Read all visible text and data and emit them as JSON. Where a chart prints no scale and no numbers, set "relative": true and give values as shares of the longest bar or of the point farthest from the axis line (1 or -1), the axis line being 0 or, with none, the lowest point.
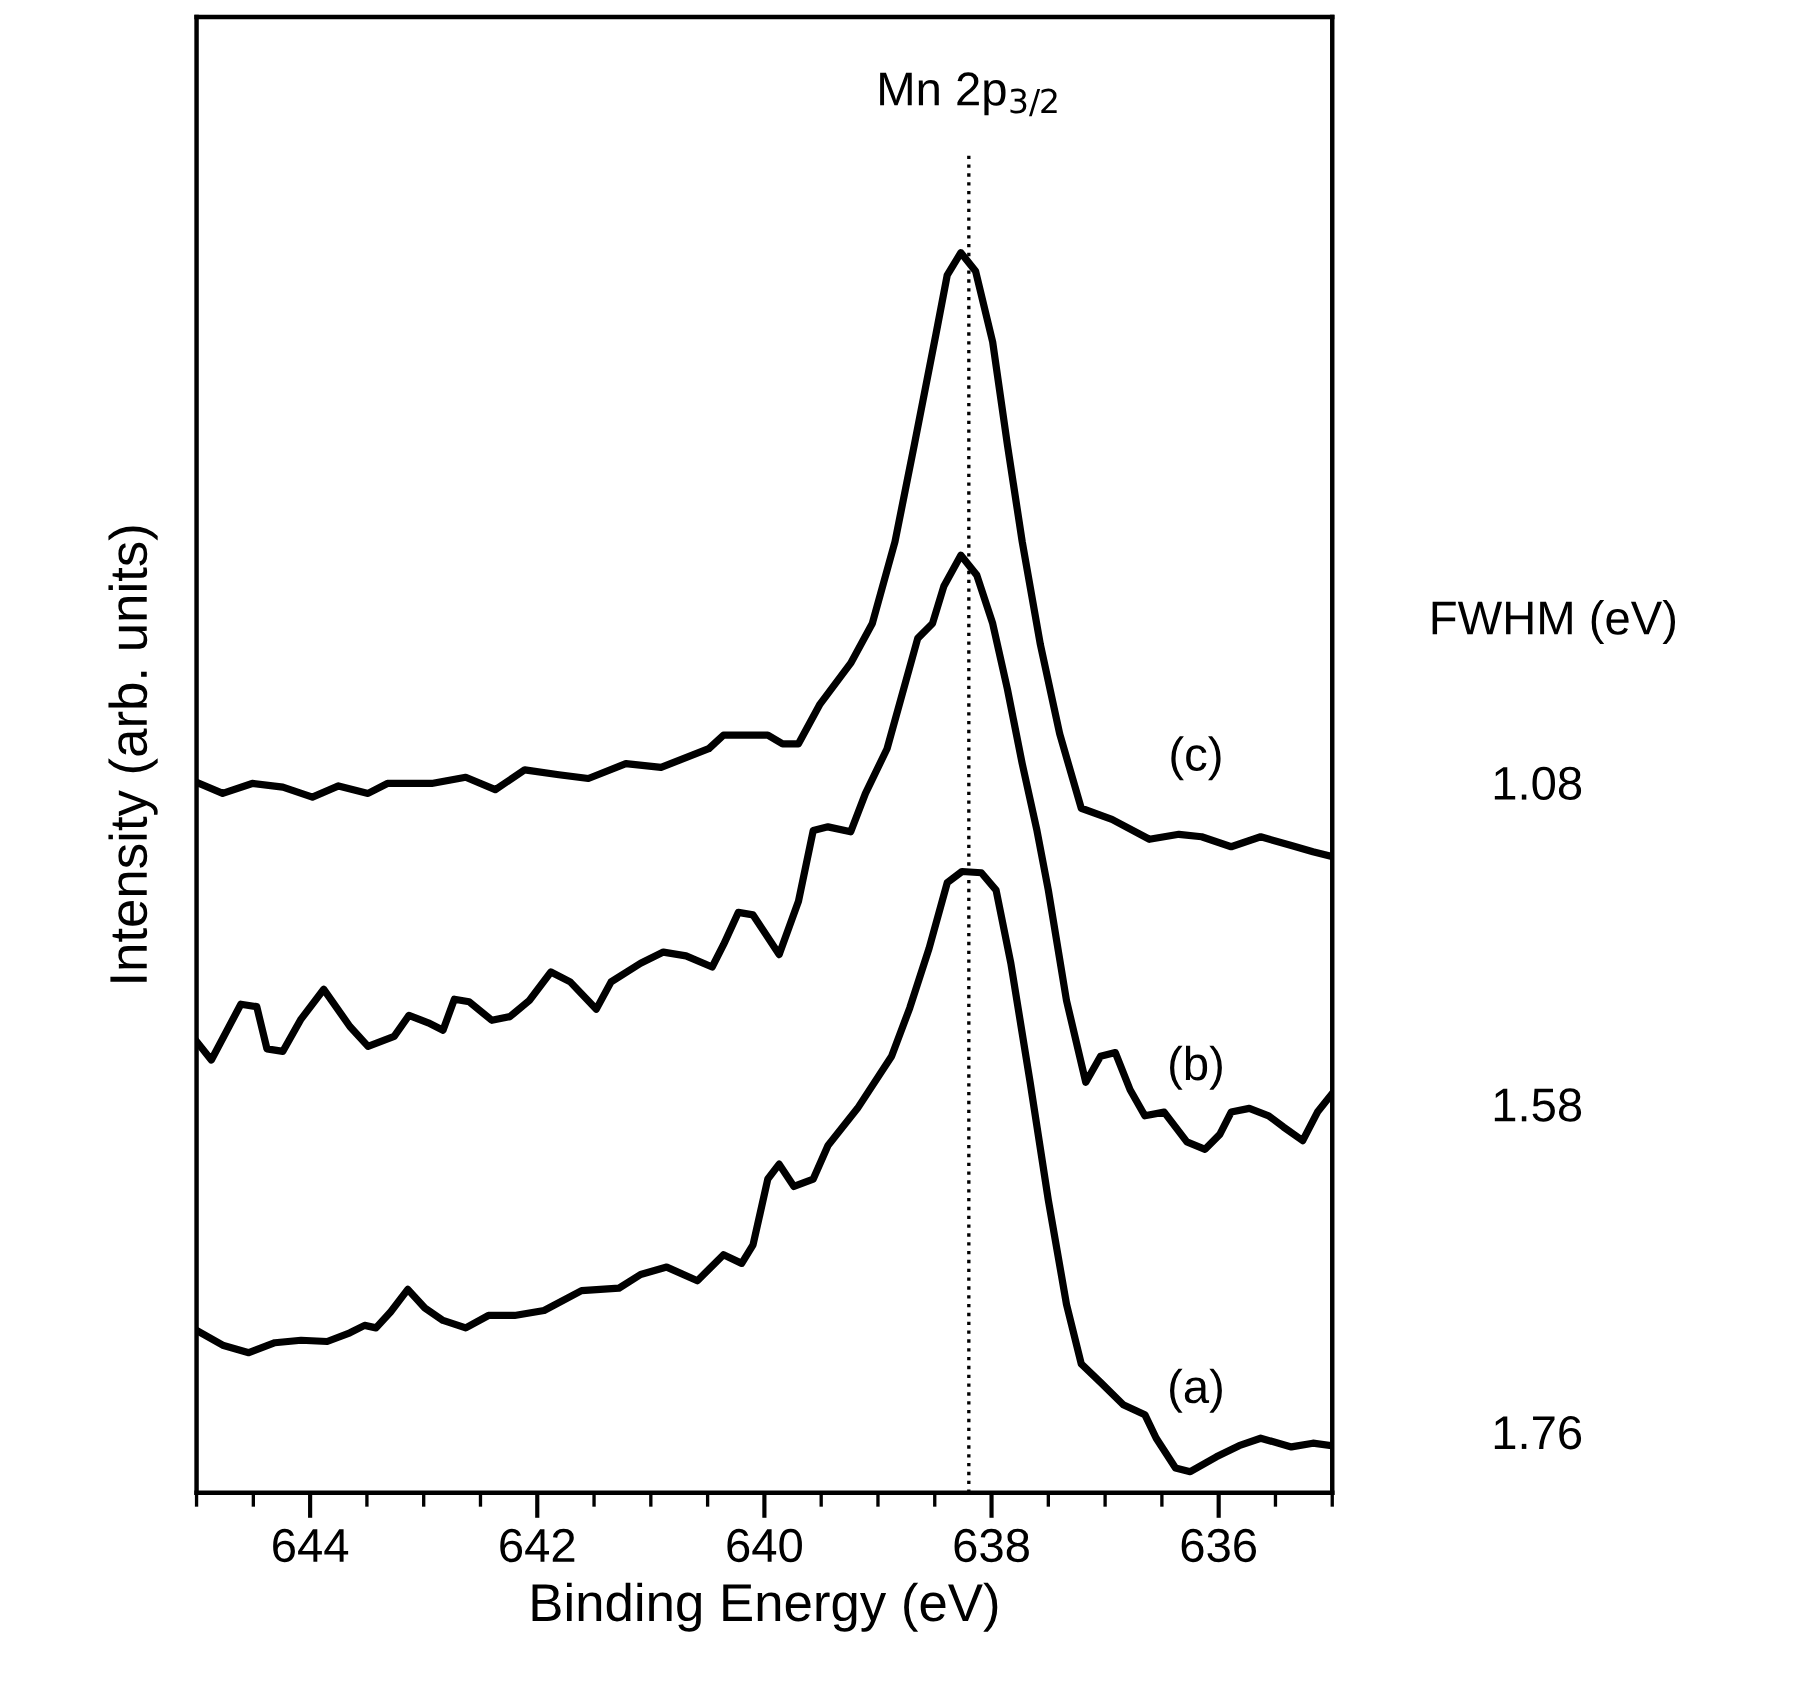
{
  "chart_data": {
    "type": "line",
    "relative": true,
    "xlabel": "Binding Energy (eV)",
    "ylabel": "Intensity (arb. units)",
    "xlim": [
      645,
      635
    ],
    "xticks": [
      {
        "value": 645,
        "label": null
      },
      {
        "value": 644.5,
        "label": null
      },
      644,
      {
        "value": 643.5,
        "label": null
      },
      {
        "value": 643,
        "label": null
      },
      {
        "value": 642.5,
        "label": null
      },
      642,
      {
        "value": 641.5,
        "label": null
      },
      {
        "value": 641,
        "label": null
      },
      {
        "value": 640.5,
        "label": null
      },
      640,
      {
        "value": 639.5,
        "label": null
      },
      {
        "value": 639,
        "label": null
      },
      {
        "value": 638.5,
        "label": null
      },
      638,
      {
        "value": 637.5,
        "label": null
      },
      {
        "value": 637,
        "label": null
      },
      {
        "value": 636.5,
        "label": null
      },
      636,
      {
        "value": 635.5,
        "label": null
      },
      {
        "value": 635,
        "label": null
      }
    ],
    "grid": false,
    "legend": false,
    "marker": "none",
    "line_style": "solid",
    "ref_lines": [
      {
        "axis": "x",
        "value": 638.2,
        "label": "Mn 2p$_{3/2}$",
        "line_style": "dotted",
        "color": "#000000"
      }
    ],
    "annotations": [
      "FWHM (eV)",
      "1.08",
      "1.58",
      "1.76"
    ],
    "series": [
      {
        "name": "(c)",
        "color": "#000000",
        "x": [
          645.0,
          644.77,
          644.51,
          644.24,
          643.98,
          643.75,
          643.49,
          643.32,
          642.93,
          642.63,
          642.37,
          642.11,
          641.81,
          641.55,
          641.22,
          640.91,
          640.49,
          640.36,
          639.97,
          639.84,
          639.7,
          639.51,
          639.24,
          639.05,
          638.85,
          638.68,
          638.49,
          638.39,
          638.27,
          638.14,
          637.99,
          637.86,
          637.73,
          637.57,
          637.4,
          637.21,
          636.94,
          636.61,
          636.35,
          636.15,
          635.89,
          635.63,
          635.36,
          635.17,
          635.0
        ],
        "values": [
          0.573,
          0.564,
          0.572,
          0.569,
          0.561,
          0.57,
          0.564,
          0.572,
          0.572,
          0.577,
          0.567,
          0.583,
          0.579,
          0.576,
          0.588,
          0.585,
          0.6,
          0.611,
          0.611,
          0.604,
          0.604,
          0.636,
          0.669,
          0.701,
          0.767,
          0.845,
          0.934,
          0.982,
          1.0,
          0.985,
          0.928,
          0.845,
          0.767,
          0.684,
          0.612,
          0.552,
          0.543,
          0.527,
          0.531,
          0.529,
          0.521,
          0.529,
          0.522,
          0.517,
          0.513
        ]
      },
      {
        "name": "(b)",
        "color": "#000000",
        "x": [
          645.0,
          644.87,
          644.61,
          644.47,
          644.38,
          644.24,
          644.08,
          643.88,
          643.65,
          643.49,
          643.26,
          643.13,
          642.96,
          642.83,
          642.73,
          642.6,
          642.4,
          642.24,
          642.07,
          641.88,
          641.71,
          641.48,
          641.35,
          641.09,
          640.89,
          640.69,
          640.46,
          640.36,
          640.23,
          640.1,
          639.87,
          639.7,
          639.57,
          639.44,
          639.24,
          639.11,
          638.92,
          638.65,
          638.52,
          638.42,
          638.27,
          638.13,
          637.99,
          637.86,
          637.73,
          637.6,
          637.5,
          637.34,
          637.17,
          637.04,
          636.91,
          636.78,
          636.65,
          636.48,
          636.28,
          636.12,
          635.99,
          635.89,
          635.73,
          635.56,
          635.43,
          635.26,
          635.13,
          635.0
        ],
        "values": [
          0.364,
          0.349,
          0.394,
          0.392,
          0.358,
          0.356,
          0.382,
          0.406,
          0.376,
          0.36,
          0.368,
          0.385,
          0.379,
          0.373,
          0.398,
          0.396,
          0.381,
          0.384,
          0.397,
          0.42,
          0.412,
          0.39,
          0.412,
          0.427,
          0.436,
          0.433,
          0.424,
          0.442,
          0.468,
          0.466,
          0.434,
          0.477,
          0.534,
          0.537,
          0.533,
          0.564,
          0.6,
          0.689,
          0.701,
          0.731,
          0.756,
          0.74,
          0.701,
          0.648,
          0.588,
          0.534,
          0.486,
          0.397,
          0.331,
          0.352,
          0.355,
          0.325,
          0.304,
          0.307,
          0.283,
          0.277,
          0.289,
          0.307,
          0.31,
          0.304,
          0.295,
          0.284,
          0.307,
          0.322
        ]
      },
      {
        "name": "(a)",
        "color": "#000000",
        "x": [
          645.0,
          644.77,
          644.54,
          644.31,
          644.08,
          643.85,
          643.65,
          643.52,
          643.42,
          643.29,
          643.14,
          642.99,
          642.83,
          642.63,
          642.43,
          642.2,
          641.94,
          641.61,
          641.28,
          641.09,
          640.86,
          640.59,
          640.36,
          640.2,
          640.1,
          639.97,
          639.87,
          639.74,
          639.57,
          639.44,
          639.18,
          638.88,
          638.72,
          638.55,
          638.39,
          638.26,
          638.09,
          637.96,
          637.83,
          637.66,
          637.5,
          637.34,
          637.21,
          637.04,
          636.84,
          636.65,
          636.55,
          636.38,
          636.25,
          636.02,
          635.82,
          635.63,
          635.36,
          635.17,
          635.0
        ],
        "values": [
          0.131,
          0.119,
          0.113,
          0.121,
          0.123,
          0.122,
          0.129,
          0.135,
          0.133,
          0.146,
          0.164,
          0.149,
          0.139,
          0.133,
          0.143,
          0.143,
          0.147,
          0.163,
          0.165,
          0.176,
          0.182,
          0.171,
          0.192,
          0.185,
          0.2,
          0.253,
          0.265,
          0.247,
          0.253,
          0.28,
          0.31,
          0.352,
          0.391,
          0.439,
          0.492,
          0.501,
          0.5,
          0.486,
          0.427,
          0.331,
          0.236,
          0.152,
          0.104,
          0.089,
          0.071,
          0.063,
          0.044,
          0.02,
          0.017,
          0.029,
          0.038,
          0.044,
          0.037,
          0.04,
          0.038
        ]
      }
    ]
  }
}
